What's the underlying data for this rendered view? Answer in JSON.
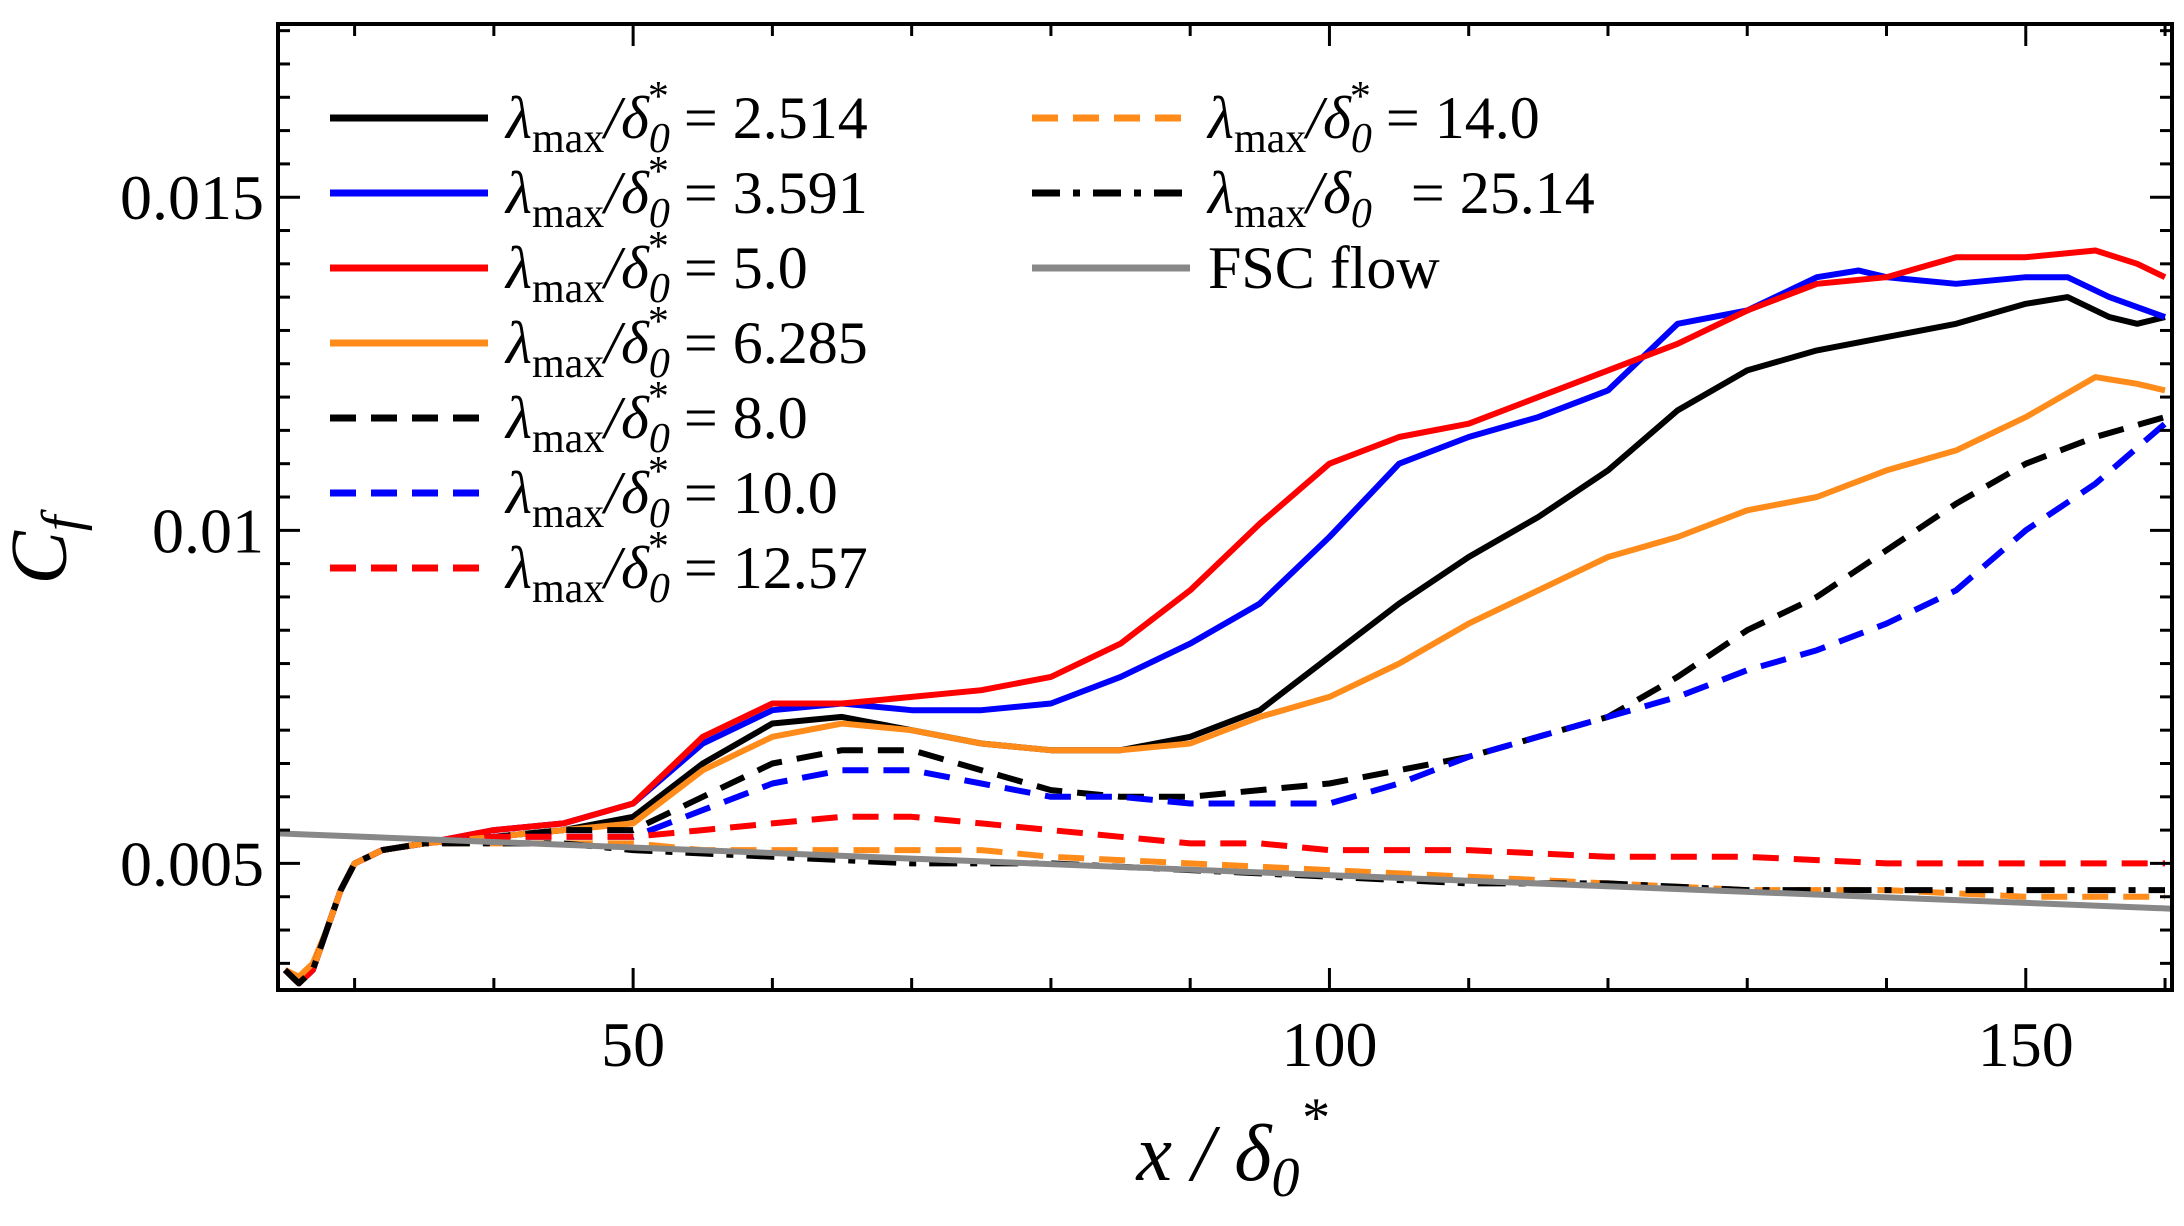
{
  "chart_data": {
    "type": "line",
    "title": "",
    "xlabel": "x / δ0*",
    "ylabel": "Cf",
    "xlim": [
      24.5,
      160.5
    ],
    "ylim": [
      0.0031,
      0.0176
    ],
    "x_ticks": [
      {
        "value": 50,
        "label": "50"
      },
      {
        "value": 100,
        "label": "100"
      },
      {
        "value": 150,
        "label": "150"
      }
    ],
    "y_ticks": [
      {
        "value": 0.005,
        "label": "0.005"
      },
      {
        "value": 0.01,
        "label": "0.01"
      },
      {
        "value": 0.015,
        "label": "0.015"
      }
    ],
    "legend_position": "top-left",
    "series": [
      {
        "name": "λmax/δ0* = 2.514",
        "legend": {
          "base": "λ",
          "sub": "max",
          "mid": "/δ",
          "sub2": "0",
          "sup": "*",
          "value": "= 2.514"
        },
        "color": "#000000",
        "dash": "solid",
        "x": [
          25,
          26,
          27,
          28,
          29,
          30,
          32,
          35,
          40,
          45,
          50,
          55,
          60,
          65,
          70,
          75,
          80,
          85,
          90,
          95,
          100,
          105,
          110,
          115,
          120,
          125,
          130,
          135,
          140,
          145,
          150,
          153,
          156,
          158,
          160
        ],
        "y": [
          0.0034,
          0.0032,
          0.0034,
          0.004,
          0.0046,
          0.005,
          0.0052,
          0.0053,
          0.0054,
          0.0055,
          0.0057,
          0.0065,
          0.0071,
          0.0072,
          0.007,
          0.0068,
          0.0067,
          0.0067,
          0.0069,
          0.0073,
          0.0081,
          0.0089,
          0.0096,
          0.0102,
          0.0109,
          0.0118,
          0.0124,
          0.0127,
          0.0129,
          0.0131,
          0.0134,
          0.0135,
          0.0132,
          0.0131,
          0.0132
        ]
      },
      {
        "name": "λmax/δ0* = 3.591",
        "legend": {
          "base": "λ",
          "sub": "max",
          "mid": "/δ",
          "sub2": "0",
          "sup": "*",
          "value": "= 3.591"
        },
        "color": "#0000ff",
        "dash": "solid",
        "x": [
          25,
          26,
          27,
          28,
          29,
          30,
          32,
          35,
          40,
          45,
          50,
          55,
          60,
          65,
          70,
          75,
          80,
          85,
          90,
          95,
          100,
          105,
          110,
          115,
          120,
          125,
          130,
          135,
          138,
          140,
          145,
          150,
          153,
          156,
          160
        ],
        "y": [
          0.0034,
          0.0032,
          0.0034,
          0.004,
          0.0046,
          0.005,
          0.0052,
          0.0053,
          0.0055,
          0.0056,
          0.0059,
          0.0068,
          0.0073,
          0.0074,
          0.0073,
          0.0073,
          0.0074,
          0.0078,
          0.0083,
          0.0089,
          0.0099,
          0.011,
          0.0114,
          0.0117,
          0.0121,
          0.0131,
          0.0133,
          0.0138,
          0.0139,
          0.0138,
          0.0137,
          0.0138,
          0.0138,
          0.0135,
          0.0132
        ]
      },
      {
        "name": "λmax/δ0* = 5.0",
        "legend": {
          "base": "λ",
          "sub": "max",
          "mid": "/δ",
          "sub2": "0",
          "sup": "*",
          "value": "= 5.0"
        },
        "color": "#ff0000",
        "dash": "solid",
        "x": [
          25,
          26,
          27,
          28,
          29,
          30,
          32,
          35,
          40,
          45,
          50,
          55,
          60,
          65,
          70,
          75,
          80,
          85,
          90,
          95,
          100,
          105,
          110,
          115,
          120,
          125,
          130,
          135,
          140,
          145,
          150,
          155,
          158,
          160
        ],
        "y": [
          0.0034,
          0.0032,
          0.0034,
          0.004,
          0.0046,
          0.005,
          0.0052,
          0.0053,
          0.0055,
          0.0056,
          0.0059,
          0.0069,
          0.0074,
          0.0074,
          0.0075,
          0.0076,
          0.0078,
          0.0083,
          0.0091,
          0.0101,
          0.011,
          0.0114,
          0.0116,
          0.012,
          0.0124,
          0.0128,
          0.0133,
          0.0137,
          0.0138,
          0.0141,
          0.0141,
          0.0142,
          0.014,
          0.0138
        ]
      },
      {
        "name": "λmax/δ0* = 6.285",
        "legend": {
          "base": "λ",
          "sub": "max",
          "mid": "/δ",
          "sub2": "0",
          "sup": "*",
          "value": "= 6.285"
        },
        "color": "#ff8c1a",
        "dash": "solid",
        "x": [
          25,
          26,
          27,
          28,
          29,
          30,
          32,
          35,
          40,
          45,
          50,
          55,
          60,
          65,
          70,
          75,
          80,
          85,
          90,
          95,
          100,
          105,
          110,
          115,
          120,
          125,
          130,
          135,
          140,
          145,
          150,
          155,
          158,
          160
        ],
        "y": [
          0.0034,
          0.0033,
          0.0035,
          0.004,
          0.0046,
          0.005,
          0.0052,
          0.0053,
          0.0054,
          0.0055,
          0.0056,
          0.0064,
          0.0069,
          0.0071,
          0.007,
          0.0068,
          0.0067,
          0.0067,
          0.0068,
          0.0072,
          0.0075,
          0.008,
          0.0086,
          0.0091,
          0.0096,
          0.0099,
          0.0103,
          0.0105,
          0.0109,
          0.0112,
          0.0117,
          0.0123,
          0.0122,
          0.0121
        ]
      },
      {
        "name": "λmax/δ0* = 8.0",
        "legend": {
          "base": "λ",
          "sub": "max",
          "mid": "/δ",
          "sub2": "0",
          "sup": "*",
          "value": "= 8.0"
        },
        "color": "#000000",
        "dash": "dashed",
        "x": [
          25,
          26,
          27,
          28,
          29,
          30,
          32,
          35,
          40,
          45,
          50,
          55,
          60,
          65,
          70,
          75,
          80,
          85,
          90,
          95,
          100,
          105,
          110,
          115,
          120,
          125,
          130,
          135,
          140,
          145,
          150,
          155,
          160
        ],
        "y": [
          0.0034,
          0.0032,
          0.0034,
          0.004,
          0.0046,
          0.005,
          0.0052,
          0.0053,
          0.0054,
          0.0055,
          0.0055,
          0.006,
          0.0065,
          0.0067,
          0.0067,
          0.0064,
          0.0061,
          0.006,
          0.006,
          0.0061,
          0.0062,
          0.0064,
          0.0066,
          0.0069,
          0.0072,
          0.0078,
          0.0085,
          0.009,
          0.0097,
          0.0104,
          0.011,
          0.0114,
          0.0117
        ]
      },
      {
        "name": "λmax/δ0* = 10.0",
        "legend": {
          "base": "λ",
          "sub": "max",
          "mid": "/δ",
          "sub2": "0",
          "sup": "*",
          "value": "= 10.0"
        },
        "color": "#0000ff",
        "dash": "dashed",
        "x": [
          25,
          26,
          27,
          28,
          29,
          30,
          32,
          35,
          40,
          45,
          50,
          55,
          60,
          65,
          70,
          75,
          80,
          85,
          90,
          95,
          100,
          105,
          110,
          115,
          120,
          125,
          130,
          135,
          140,
          145,
          150,
          155,
          160
        ],
        "y": [
          0.0034,
          0.0032,
          0.0034,
          0.004,
          0.0046,
          0.005,
          0.0052,
          0.0053,
          0.0054,
          0.0054,
          0.0054,
          0.0058,
          0.0062,
          0.0064,
          0.0064,
          0.0062,
          0.006,
          0.006,
          0.0059,
          0.0059,
          0.0059,
          0.0062,
          0.0066,
          0.0069,
          0.0072,
          0.0075,
          0.0079,
          0.0082,
          0.0086,
          0.0091,
          0.01,
          0.0107,
          0.0116
        ]
      },
      {
        "name": "λmax/δ0* = 12.57",
        "legend": {
          "base": "λ",
          "sub": "max",
          "mid": "/δ",
          "sub2": "0",
          "sup": "*",
          "value": "= 12.57"
        },
        "color": "#ff0000",
        "dash": "dashed",
        "x": [
          25,
          26,
          27,
          28,
          29,
          30,
          32,
          35,
          40,
          45,
          50,
          55,
          60,
          65,
          70,
          75,
          80,
          85,
          90,
          95,
          100,
          110,
          120,
          130,
          140,
          150,
          160
        ],
        "y": [
          0.0034,
          0.0032,
          0.0034,
          0.004,
          0.0046,
          0.005,
          0.0052,
          0.0053,
          0.0054,
          0.0054,
          0.0054,
          0.0055,
          0.0056,
          0.0057,
          0.0057,
          0.0056,
          0.0055,
          0.0054,
          0.0053,
          0.0053,
          0.0052,
          0.0052,
          0.0051,
          0.0051,
          0.005,
          0.005,
          0.005
        ]
      },
      {
        "name": "λmax/δ0* = 14.0",
        "legend": {
          "base": "λ",
          "sub": "max",
          "mid": "/δ",
          "sub2": "0",
          "sup": "*",
          "value": "= 14.0"
        },
        "color": "#ff8c1a",
        "dash": "dashed",
        "x": [
          25,
          26,
          27,
          28,
          29,
          30,
          32,
          35,
          40,
          45,
          50,
          55,
          60,
          65,
          70,
          75,
          80,
          90,
          100,
          110,
          120,
          130,
          140,
          150,
          160
        ],
        "y": [
          0.0034,
          0.0032,
          0.0034,
          0.004,
          0.0046,
          0.005,
          0.0052,
          0.0053,
          0.0053,
          0.0053,
          0.0053,
          0.0052,
          0.0052,
          0.0052,
          0.0052,
          0.0052,
          0.0051,
          0.005,
          0.0049,
          0.0048,
          0.0047,
          0.0046,
          0.0046,
          0.0045,
          0.0045
        ]
      },
      {
        "name": "λmax/δ0* = 25.14",
        "legend": {
          "base": "λ",
          "sub": "max",
          "mid": "/δ",
          "sub2": "0",
          "sup": "",
          "value": "= 25.14"
        },
        "color": "#000000",
        "dash": "dashdot",
        "x": [
          25,
          26,
          27,
          28,
          29,
          30,
          32,
          35,
          40,
          45,
          50,
          60,
          70,
          80,
          90,
          100,
          110,
          120,
          130,
          140,
          150,
          160
        ],
        "y": [
          0.0034,
          0.0032,
          0.0034,
          0.004,
          0.0046,
          0.005,
          0.0052,
          0.0053,
          0.0053,
          0.0053,
          0.0052,
          0.0051,
          0.005,
          0.005,
          0.0049,
          0.0048,
          0.0047,
          0.0047,
          0.0046,
          0.0046,
          0.0046,
          0.0046
        ]
      },
      {
        "name": "FSC flow",
        "legend": {
          "base": "FSC flow",
          "sub": "",
          "mid": "",
          "sub2": "",
          "sup": "",
          "value": ""
        },
        "color": "#888888",
        "dash": "solid",
        "x": [
          24.5,
          160.5
        ],
        "y": [
          0.00545,
          0.00432
        ]
      }
    ]
  }
}
